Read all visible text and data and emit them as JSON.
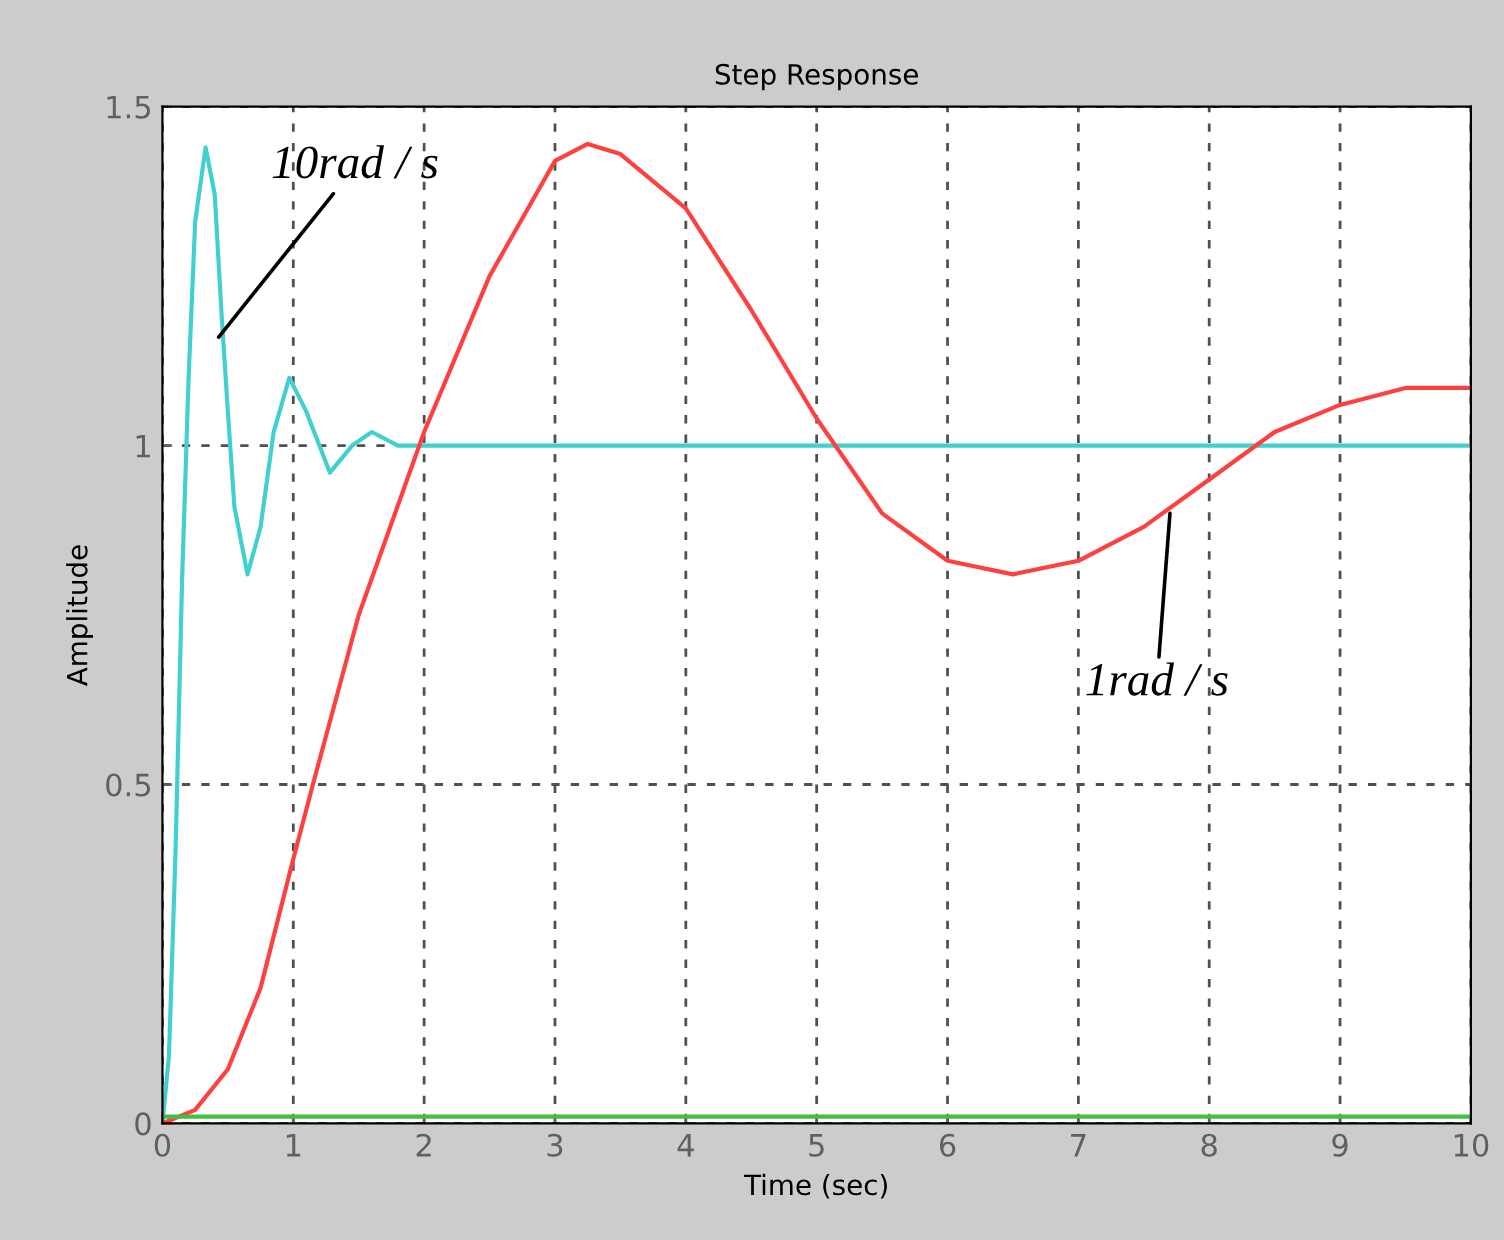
{
  "chart_data": {
    "type": "line",
    "title": "Step Response",
    "xlabel": "Time (sec)",
    "ylabel": "Amplitude",
    "xlim": [
      0,
      10
    ],
    "ylim": [
      0,
      1.5
    ],
    "xticks": [
      0,
      1,
      2,
      3,
      4,
      5,
      6,
      7,
      8,
      9,
      10
    ],
    "yticks": [
      0,
      0.5,
      1,
      1.5
    ],
    "grid": true,
    "line_style": "solid",
    "marker": "none",
    "series": [
      {
        "color": "#40d0d0",
        "x": [
          0,
          0.05,
          0.1,
          0.15,
          0.2,
          0.25,
          0.33,
          0.4,
          0.45,
          0.5,
          0.55,
          0.65,
          0.75,
          0.85,
          0.97,
          1.1,
          1.28,
          1.45,
          1.6,
          1.8,
          10
        ],
        "values": [
          0,
          0.1,
          0.4,
          0.8,
          1.1,
          1.33,
          1.44,
          1.37,
          1.2,
          1.05,
          0.91,
          0.81,
          0.88,
          1.02,
          1.1,
          1.05,
          0.96,
          1.0,
          1.02,
          1.0,
          1.0
        ]
      },
      {
        "color": "#ff4040",
        "x": [
          0,
          0.25,
          0.5,
          0.75,
          1,
          1.15,
          1.5,
          2,
          2.5,
          3,
          3.25,
          3.5,
          4,
          4.5,
          5,
          5.5,
          6,
          6.5,
          7,
          7.5,
          8,
          8.5,
          9,
          9.5,
          10
        ],
        "values": [
          0,
          0.02,
          0.08,
          0.2,
          0.39,
          0.5,
          0.75,
          1.02,
          1.25,
          1.42,
          1.445,
          1.43,
          1.35,
          1.2,
          1.04,
          0.9,
          0.83,
          0.81,
          0.83,
          0.88,
          0.95,
          1.02,
          1.06,
          1.085,
          1.085
        ]
      },
      {
        "color": "#40c040",
        "x": [
          0,
          10
        ],
        "values": [
          0.01,
          0.01
        ]
      }
    ],
    "annotations": [
      {
        "text": "10rad / s",
        "x": 0.43,
        "y": 1.16
      },
      {
        "text": "1rad / s",
        "x": 7.7,
        "y": 0.9
      }
    ]
  }
}
